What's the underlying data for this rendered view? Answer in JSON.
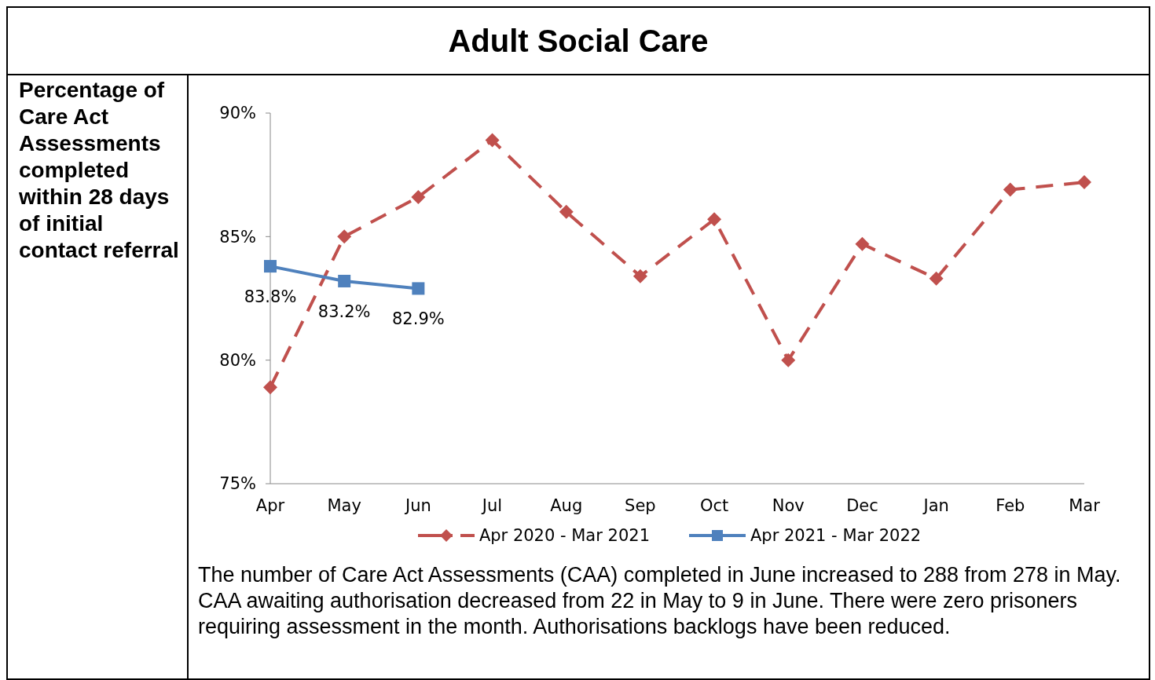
{
  "chart_data": {
    "type": "line",
    "title": "Adult Social Care",
    "subtitle": "Percentage of Care Act Assessments completed within 28 days of initial contact referral",
    "categories": [
      "Apr",
      "May",
      "Jun",
      "Jul",
      "Aug",
      "Sep",
      "Oct",
      "Nov",
      "Dec",
      "Jan",
      "Feb",
      "Mar"
    ],
    "series": [
      {
        "name": "Apr 2020 - Mar 2021",
        "color": "#c0504d",
        "marker": "diamond",
        "line_style": "dashed",
        "values": [
          78.9,
          85.0,
          86.6,
          88.9,
          86.0,
          83.4,
          85.7,
          80.0,
          84.7,
          83.3,
          86.9,
          87.2
        ]
      },
      {
        "name": "Apr 2021 - Mar 2022",
        "color": "#4f81bd",
        "marker": "square",
        "line_style": "solid",
        "values": [
          83.8,
          83.2,
          82.9,
          null,
          null,
          null,
          null,
          null,
          null,
          null,
          null,
          null
        ],
        "value_labels": [
          "83.8%",
          "83.2%",
          "82.9%",
          null,
          null,
          null,
          null,
          null,
          null,
          null,
          null,
          null
        ]
      }
    ],
    "ylim": [
      75,
      90
    ],
    "yticks": [
      {
        "value": 75,
        "label": "75%"
      },
      {
        "value": 80,
        "label": "80%"
      },
      {
        "value": 85,
        "label": "85%"
      },
      {
        "value": 90,
        "label": "90%"
      }
    ],
    "grid": false,
    "legend": "bottom",
    "annotations": [
      "The number of Care Act Assessments (CAA) completed in June increased to 288 from 278 in May. CAA awaiting authorisation decreased from 22 in May to 9 in June. There were zero prisoners requiring assessment in the month. Authorisations backlogs have been reduced."
    ]
  }
}
